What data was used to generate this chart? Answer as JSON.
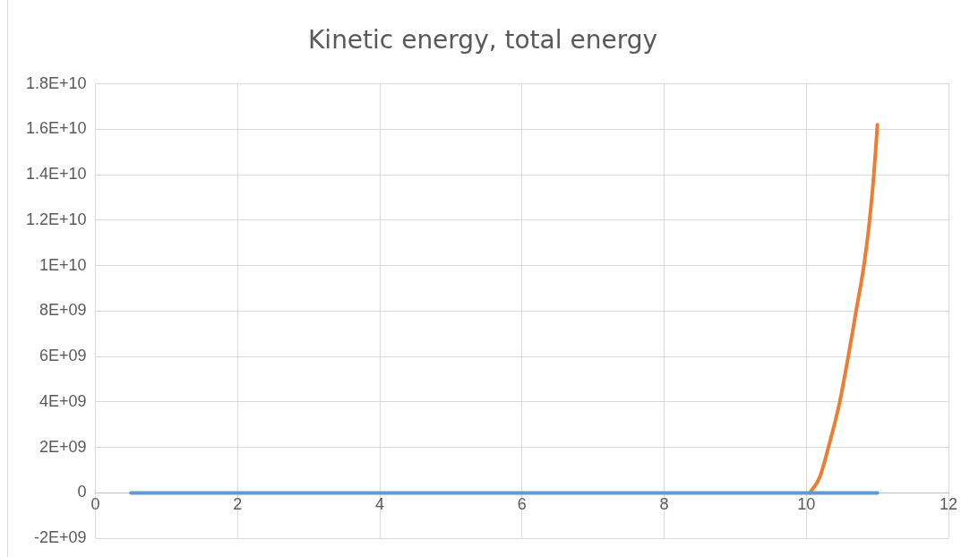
{
  "chart_data": {
    "type": "line",
    "title": "Kinetic energy, total energy",
    "xlim": [
      0,
      12
    ],
    "xticks": [
      0,
      2,
      4,
      6,
      8,
      10,
      12
    ],
    "ylim": [
      -2000000000,
      18000000000
    ],
    "yticks": [
      {
        "value": -2000000000,
        "label": "-2E+09"
      },
      {
        "value": 0,
        "label": "0"
      },
      {
        "value": 2000000000,
        "label": "2E+09"
      },
      {
        "value": 4000000000,
        "label": "4E+09"
      },
      {
        "value": 6000000000,
        "label": "6E+09"
      },
      {
        "value": 8000000000,
        "label": "8E+09"
      },
      {
        "value": 10000000000,
        "label": "1E+10"
      },
      {
        "value": 12000000000,
        "label": "1.2E+10"
      },
      {
        "value": 14000000000,
        "label": "1.4E+10"
      },
      {
        "value": 16000000000,
        "label": "1.6E+10"
      },
      {
        "value": 18000000000,
        "label": "1.8E+10"
      }
    ],
    "grid": true,
    "legend": false,
    "marker": "none",
    "line_style": "solid",
    "series": [
      {
        "color": "#5b9bd5",
        "x": [
          0.5,
          11
        ],
        "values": [
          0,
          0
        ]
      },
      {
        "color": "#ed7d31",
        "x": [
          10.05,
          10.19,
          10.31,
          10.47,
          10.59,
          10.7,
          10.81,
          10.89,
          10.95,
          11
        ],
        "values": [
          0,
          700000000,
          2000000000,
          4000000000,
          6000000000,
          8000000000,
          10000000000,
          12000000000,
          14000000000,
          16200000000
        ]
      }
    ]
  }
}
